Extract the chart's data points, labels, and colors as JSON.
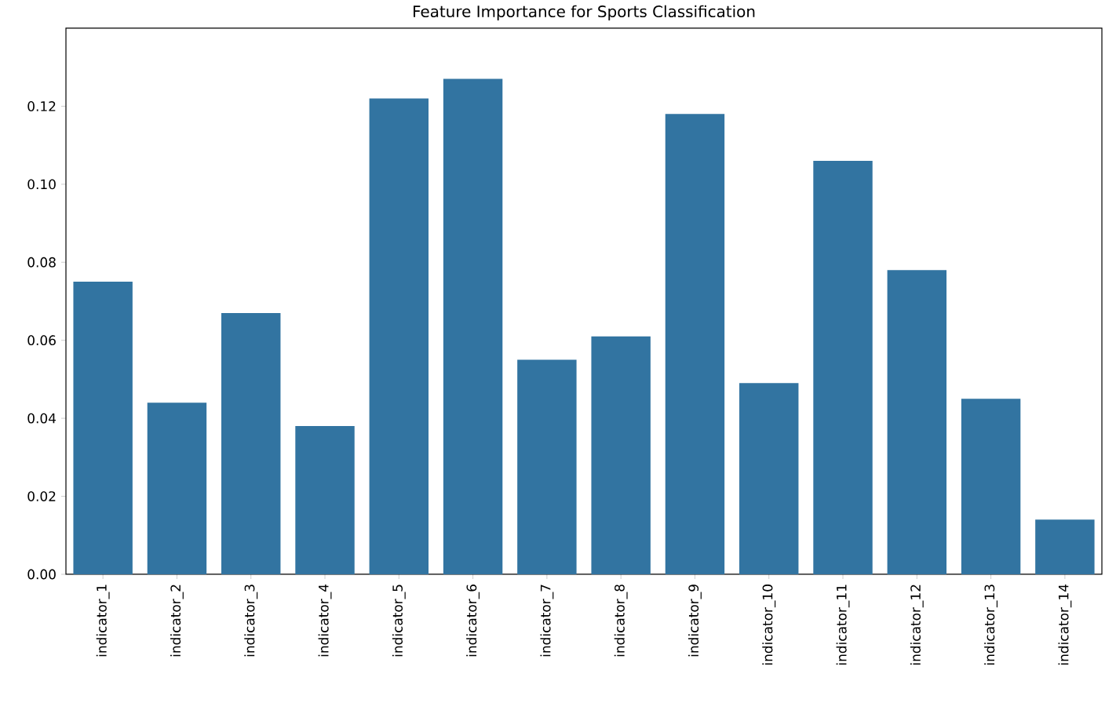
{
  "chart_data": {
    "type": "bar",
    "title": "Feature Importance for Sports Classification",
    "categories": [
      "indicator_1",
      "indicator_2",
      "indicator_3",
      "indicator_4",
      "indicator_5",
      "indicator_6",
      "indicator_7",
      "indicator_8",
      "indicator_9",
      "indicator_10",
      "indicator_11",
      "indicator_12",
      "indicator_13",
      "indicator_14"
    ],
    "values": [
      0.075,
      0.044,
      0.067,
      0.038,
      0.122,
      0.127,
      0.055,
      0.061,
      0.118,
      0.049,
      0.106,
      0.078,
      0.045,
      0.014
    ],
    "color": "#3274a1",
    "ylim": [
      0,
      0.14
    ],
    "yticks": [
      {
        "value": 0,
        "label": "0.00"
      },
      {
        "value": 0.02,
        "label": "0.02"
      },
      {
        "value": 0.04,
        "label": "0.04"
      },
      {
        "value": 0.06,
        "label": "0.06"
      },
      {
        "value": 0.08,
        "label": "0.08"
      },
      {
        "value": 0.1,
        "label": "0.10"
      },
      {
        "value": 0.12,
        "label": "0.12"
      }
    ]
  }
}
